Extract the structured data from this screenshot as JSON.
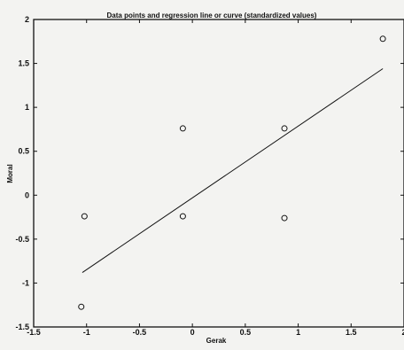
{
  "chart_data": {
    "type": "scatter",
    "title": "Data points and regression line or curve (standardized values)",
    "xlabel": "Gerak",
    "ylabel": "Moral",
    "xlim": [
      -1.5,
      2
    ],
    "ylim": [
      -1.5,
      2
    ],
    "x_ticks": [
      "-1.5",
      "-1",
      "-0.5",
      "0",
      "0.5",
      "1",
      "1.5",
      "2"
    ],
    "y_ticks": [
      "-1.5",
      "-1",
      "-0.5",
      "0",
      "0.5",
      "1",
      "1.5",
      "2"
    ],
    "grid": false,
    "legend": "none",
    "points": {
      "x": [
        -1.02,
        -1.05,
        -0.09,
        -0.09,
        0.87,
        0.87,
        1.8
      ],
      "y": [
        -0.24,
        -1.27,
        0.76,
        -0.24,
        0.76,
        -0.26,
        1.78
      ]
    },
    "regression_line": {
      "x": [
        -1.04,
        1.8
      ],
      "y": [
        -0.88,
        1.44
      ]
    }
  },
  "colors": {
    "background": "#f3f3f1",
    "ink": "#111111"
  }
}
